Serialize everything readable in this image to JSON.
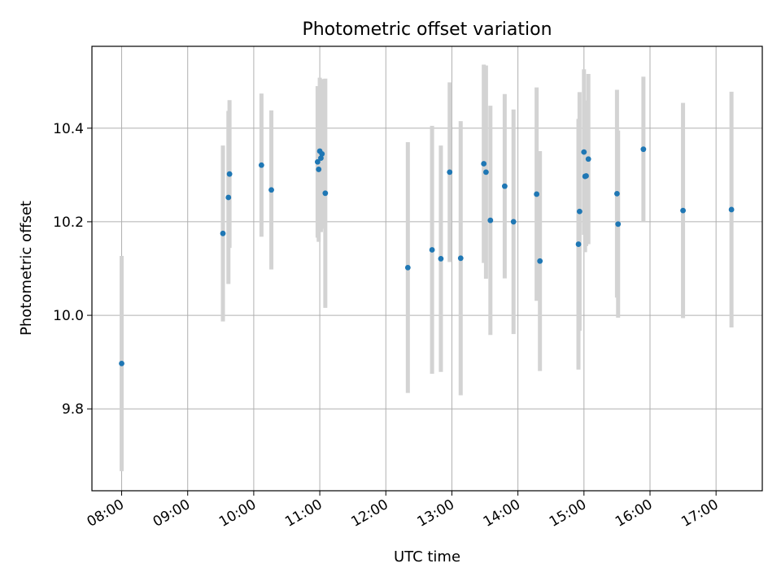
{
  "chart_data": {
    "type": "scatter",
    "title": "Photometric offset variation",
    "xlabel": "UTC time",
    "ylabel": "Photometric offset",
    "grid": true,
    "xlim": [
      "07:33",
      "17:42"
    ],
    "ylim": [
      9.625,
      10.575
    ],
    "x_ticks": [
      "08:00",
      "09:00",
      "10:00",
      "11:00",
      "12:00",
      "13:00",
      "14:00",
      "15:00",
      "16:00",
      "17:00"
    ],
    "y_ticks": [
      9.8,
      10.0,
      10.2,
      10.4
    ],
    "y_tick_labels": [
      "9.8",
      "10.0",
      "10.2",
      "10.4"
    ],
    "marker_color": "#1f77b4",
    "errorbar_color": "#d3d3d3",
    "points": [
      {
        "x": "08:00",
        "y": 9.897,
        "yerr": 0.23
      },
      {
        "x": "09:32",
        "y": 10.175,
        "yerr": 0.188
      },
      {
        "x": "09:37",
        "y": 10.252,
        "yerr": 0.185
      },
      {
        "x": "09:38",
        "y": 10.302,
        "yerr": 0.158
      },
      {
        "x": "10:07",
        "y": 10.321,
        "yerr": 0.153
      },
      {
        "x": "10:16",
        "y": 10.268,
        "yerr": 0.17
      },
      {
        "x": "10:58",
        "y": 10.328,
        "yerr": 0.162
      },
      {
        "x": "10:59",
        "y": 10.312,
        "yerr": 0.155
      },
      {
        "x": "11:00",
        "y": 10.351,
        "yerr": 0.157
      },
      {
        "x": "11:01",
        "y": 10.336,
        "yerr": 0.158
      },
      {
        "x": "11:02",
        "y": 10.345,
        "yerr": 0.16
      },
      {
        "x": "11:05",
        "y": 10.261,
        "yerr": 0.245
      },
      {
        "x": "12:20",
        "y": 10.102,
        "yerr": 0.268
      },
      {
        "x": "12:42",
        "y": 10.14,
        "yerr": 0.265
      },
      {
        "x": "12:50",
        "y": 10.121,
        "yerr": 0.242
      },
      {
        "x": "12:58",
        "y": 10.306,
        "yerr": 0.192
      },
      {
        "x": "13:08",
        "y": 10.122,
        "yerr": 0.293
      },
      {
        "x": "13:29",
        "y": 10.324,
        "yerr": 0.212
      },
      {
        "x": "13:31",
        "y": 10.306,
        "yerr": 0.228
      },
      {
        "x": "13:35",
        "y": 10.203,
        "yerr": 0.245
      },
      {
        "x": "13:48",
        "y": 10.276,
        "yerr": 0.197
      },
      {
        "x": "13:56",
        "y": 10.2,
        "yerr": 0.24
      },
      {
        "x": "14:17",
        "y": 10.259,
        "yerr": 0.228
      },
      {
        "x": "14:20",
        "y": 10.116,
        "yerr": 0.235
      },
      {
        "x": "14:55",
        "y": 10.152,
        "yerr": 0.268
      },
      {
        "x": "14:56",
        "y": 10.222,
        "yerr": 0.255
      },
      {
        "x": "15:00",
        "y": 10.349,
        "yerr": 0.177
      },
      {
        "x": "15:01",
        "y": 10.297,
        "yerr": 0.162
      },
      {
        "x": "15:02",
        "y": 10.298,
        "yerr": 0.15
      },
      {
        "x": "15:04",
        "y": 10.334,
        "yerr": 0.182
      },
      {
        "x": "15:30",
        "y": 10.26,
        "yerr": 0.222
      },
      {
        "x": "15:31",
        "y": 10.195,
        "yerr": 0.2
      },
      {
        "x": "15:54",
        "y": 10.355,
        "yerr": 0.155
      },
      {
        "x": "16:30",
        "y": 10.224,
        "yerr": 0.23
      },
      {
        "x": "17:14",
        "y": 10.226,
        "yerr": 0.252
      }
    ]
  }
}
